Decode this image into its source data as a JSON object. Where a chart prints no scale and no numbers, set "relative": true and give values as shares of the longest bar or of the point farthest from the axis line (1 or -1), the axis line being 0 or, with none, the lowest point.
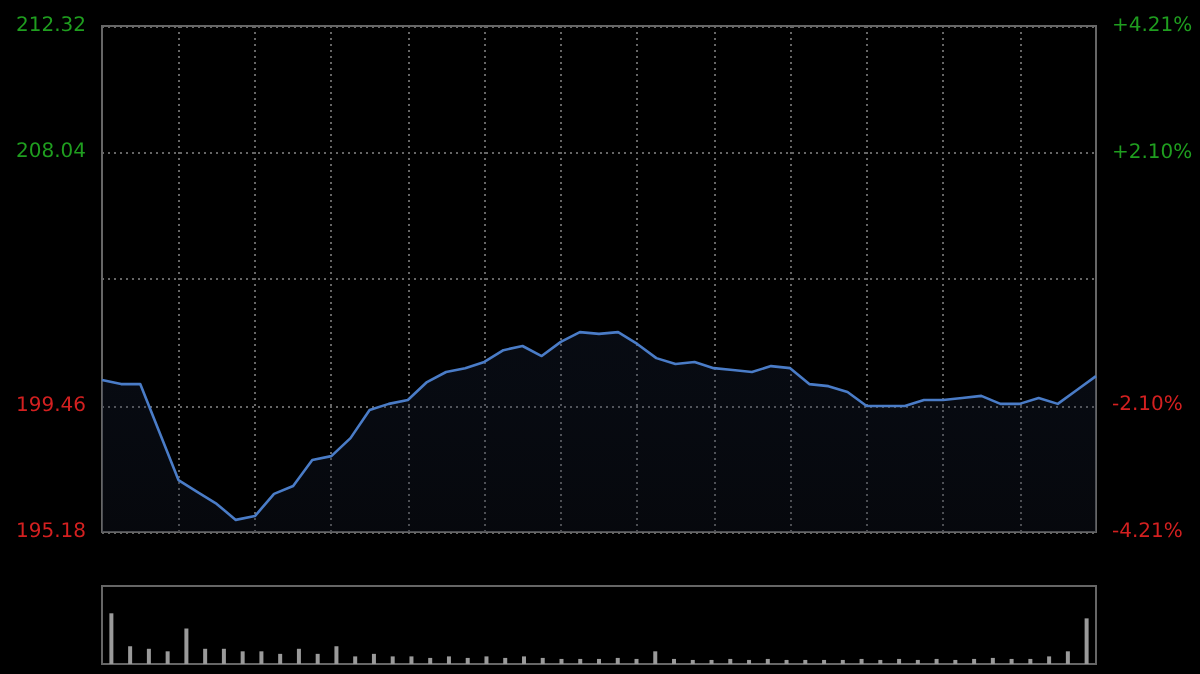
{
  "chart_data": [
    {
      "type": "area",
      "categories": [
        null,
        null,
        null,
        null,
        null,
        null,
        null,
        null,
        null,
        null,
        null,
        null,
        null,
        null,
        null,
        null,
        null,
        null,
        null,
        null,
        null,
        null,
        null,
        null,
        null,
        null,
        null,
        null,
        null,
        null,
        null,
        null,
        null,
        null,
        null,
        null,
        null,
        null,
        null,
        null,
        null,
        null,
        null,
        null,
        null,
        null,
        null,
        null,
        null,
        null,
        null,
        null,
        null
      ],
      "series": [
        {
          "color": "#4a7cc7",
          "values": [
            200.33,
            200.19,
            200.19,
            198.57,
            196.94,
            196.53,
            196.13,
            195.59,
            195.72,
            196.47,
            196.74,
            197.62,
            197.75,
            198.36,
            199.31,
            199.52,
            199.65,
            200.26,
            200.6,
            200.73,
            200.94,
            201.34,
            201.48,
            201.14,
            201.62,
            201.95,
            201.89,
            201.95,
            201.55,
            201.07,
            200.87,
            200.94,
            200.73,
            200.67,
            200.6,
            200.8,
            200.73,
            200.19,
            200.12,
            199.92,
            199.45,
            199.45,
            199.45,
            199.65,
            199.65,
            199.72,
            199.79,
            199.52,
            199.52,
            199.72,
            199.52,
            199.99,
            200.46
          ]
        }
      ],
      "ylim": [
        195.18,
        212.32
      ],
      "yticks": [
        212.32,
        208.04,
        {
          "value": 203.75,
          "label": null
        },
        199.46,
        195.18
      ],
      "y2lim": [
        -4.21,
        4.21
      ],
      "y2ticks": [
        {
          "value": 4.21,
          "label": "+4.21%"
        },
        {
          "value": 2.1,
          "label": "+2.10%"
        },
        {
          "value": 0,
          "label": null
        },
        {
          "value": -2.1,
          "label": "-2.10%"
        },
        {
          "value": -4.21,
          "label": "-4.21%"
        }
      ],
      "grid": true,
      "tick_labels": "y",
      "marker": "none",
      "line_style": "solid"
    },
    {
      "type": "bar",
      "relative": true,
      "tick_labels": false,
      "grid": false,
      "categories": [
        null,
        null,
        null,
        null,
        null,
        null,
        null,
        null,
        null,
        null,
        null,
        null,
        null,
        null,
        null,
        null,
        null,
        null,
        null,
        null,
        null,
        null,
        null,
        null,
        null,
        null,
        null,
        null,
        null,
        null,
        null,
        null,
        null,
        null,
        null,
        null,
        null,
        null,
        null,
        null,
        null,
        null,
        null,
        null,
        null,
        null,
        null,
        null,
        null,
        null,
        null,
        null,
        null
      ],
      "series": [
        {
          "color": "#9a9a9a",
          "values": [
            1,
            0.35,
            0.3,
            0.25,
            0.7,
            0.3,
            0.3,
            0.25,
            0.25,
            0.2,
            0.3,
            0.2,
            0.35,
            0.15,
            0.2,
            0.15,
            0.15,
            0.12,
            0.15,
            0.12,
            0.15,
            0.12,
            0.15,
            0.12,
            0.1,
            0.1,
            0.1,
            0.12,
            0.1,
            0.25,
            0.1,
            0.08,
            0.08,
            0.1,
            0.08,
            0.1,
            0.08,
            0.08,
            0.08,
            0.08,
            0.1,
            0.08,
            0.1,
            0.08,
            0.1,
            0.08,
            0.1,
            0.12,
            0.1,
            0.1,
            0.15,
            0.25,
            0.9
          ]
        }
      ]
    }
  ]
}
